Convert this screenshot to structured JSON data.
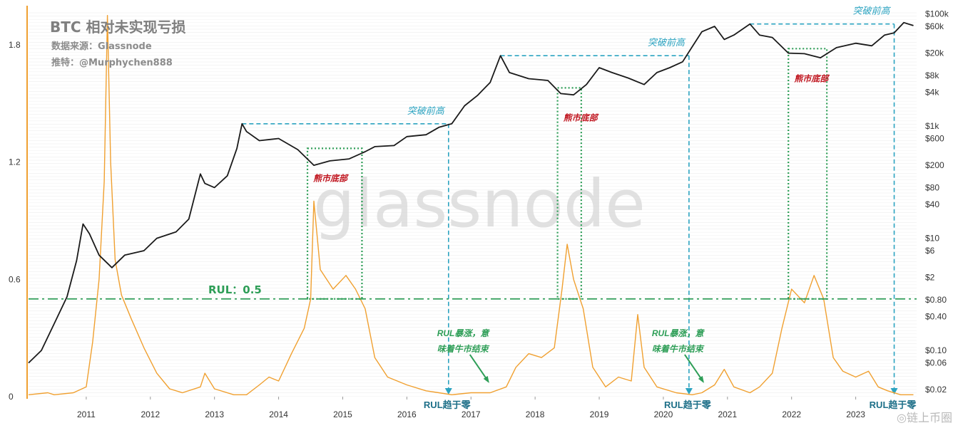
{
  "header": {
    "title": "BTC 相对未实现亏损",
    "source": "数据来源：Glassnode",
    "author": "推特：@Murphychen888"
  },
  "watermark": "glassnode",
  "footer_mark": "◎链上币圈",
  "colors": {
    "price": "#1a1a1a",
    "rul": "#f0a030",
    "threshold": "#2e9e57",
    "ath_guide": "#2ba3c0",
    "bottom_box": "#2e9e57",
    "bear_label": "#c0151f",
    "axis_text": "#333333"
  },
  "chart_data": {
    "type": "line",
    "x_ticks": [
      "2011",
      "2012",
      "2013",
      "2014",
      "2015",
      "2016",
      "2017",
      "2018",
      "2019",
      "2020",
      "2021",
      "2022",
      "2023"
    ],
    "y_left": {
      "ticks": [
        "0",
        "0.6",
        "1.2",
        "1.8"
      ],
      "range": [
        0,
        2.0
      ]
    },
    "y_right": {
      "scale": "log",
      "ticks": [
        "$0.02",
        "$0.06",
        "$0.10",
        "$0.40",
        "$0.80",
        "$2",
        "$6",
        "$10",
        "$40",
        "$80",
        "$200",
        "$600",
        "$1k",
        "$4k",
        "$8k",
        "$20k",
        "$60k",
        "$100k"
      ],
      "range": [
        0.015,
        140000
      ]
    },
    "series": [
      {
        "axis": "right",
        "points": [
          [
            2010.6,
            0.06
          ],
          [
            2010.8,
            0.1
          ],
          [
            2011.0,
            0.3
          ],
          [
            2011.2,
            0.9
          ],
          [
            2011.35,
            4
          ],
          [
            2011.45,
            18
          ],
          [
            2011.55,
            12
          ],
          [
            2011.7,
            5
          ],
          [
            2011.9,
            3
          ],
          [
            2012.1,
            5
          ],
          [
            2012.4,
            6
          ],
          [
            2012.6,
            10
          ],
          [
            2012.9,
            13
          ],
          [
            2013.1,
            22
          ],
          [
            2013.28,
            140
          ],
          [
            2013.35,
            95
          ],
          [
            2013.5,
            80
          ],
          [
            2013.7,
            130
          ],
          [
            2013.85,
            400
          ],
          [
            2013.93,
            1100
          ],
          [
            2014.0,
            800
          ],
          [
            2014.2,
            550
          ],
          [
            2014.5,
            600
          ],
          [
            2014.8,
            380
          ],
          [
            2015.05,
            200
          ],
          [
            2015.3,
            240
          ],
          [
            2015.6,
            260
          ],
          [
            2015.85,
            350
          ],
          [
            2016.0,
            430
          ],
          [
            2016.3,
            450
          ],
          [
            2016.5,
            650
          ],
          [
            2016.8,
            700
          ],
          [
            2017.0,
            950
          ],
          [
            2017.2,
            1100
          ],
          [
            2017.4,
            2300
          ],
          [
            2017.6,
            3500
          ],
          [
            2017.8,
            6000
          ],
          [
            2017.96,
            18000
          ],
          [
            2018.1,
            9000
          ],
          [
            2018.4,
            7000
          ],
          [
            2018.7,
            6500
          ],
          [
            2018.9,
            3800
          ],
          [
            2019.1,
            3600
          ],
          [
            2019.3,
            5500
          ],
          [
            2019.5,
            11000
          ],
          [
            2019.7,
            9000
          ],
          [
            2019.95,
            7200
          ],
          [
            2020.2,
            5500
          ],
          [
            2020.4,
            9000
          ],
          [
            2020.6,
            11000
          ],
          [
            2020.8,
            14000
          ],
          [
            2020.95,
            26000
          ],
          [
            2021.1,
            48000
          ],
          [
            2021.3,
            60000
          ],
          [
            2021.45,
            35000
          ],
          [
            2021.6,
            42000
          ],
          [
            2021.85,
            66000
          ],
          [
            2022.0,
            42000
          ],
          [
            2022.2,
            38000
          ],
          [
            2022.45,
            20000
          ],
          [
            2022.7,
            19500
          ],
          [
            2022.95,
            16500
          ],
          [
            2023.2,
            25000
          ],
          [
            2023.5,
            30000
          ],
          [
            2023.75,
            27000
          ],
          [
            2023.95,
            42000
          ],
          [
            2024.1,
            46000
          ],
          [
            2024.25,
            70000
          ],
          [
            2024.4,
            62000
          ]
        ]
      },
      {
        "axis": "left",
        "points": [
          [
            2010.6,
            0.01
          ],
          [
            2010.9,
            0.02
          ],
          [
            2011.0,
            0.01
          ],
          [
            2011.3,
            0.02
          ],
          [
            2011.5,
            0.05
          ],
          [
            2011.6,
            0.28
          ],
          [
            2011.7,
            0.6
          ],
          [
            2011.78,
            1.1
          ],
          [
            2011.83,
            1.95
          ],
          [
            2011.88,
            1.2
          ],
          [
            2011.95,
            0.7
          ],
          [
            2012.05,
            0.52
          ],
          [
            2012.2,
            0.4
          ],
          [
            2012.4,
            0.25
          ],
          [
            2012.6,
            0.12
          ],
          [
            2012.8,
            0.04
          ],
          [
            2013.0,
            0.02
          ],
          [
            2013.28,
            0.05
          ],
          [
            2013.35,
            0.12
          ],
          [
            2013.5,
            0.04
          ],
          [
            2013.8,
            0.01
          ],
          [
            2014.0,
            0.01
          ],
          [
            2014.2,
            0.06
          ],
          [
            2014.35,
            0.1
          ],
          [
            2014.5,
            0.08
          ],
          [
            2014.7,
            0.22
          ],
          [
            2014.9,
            0.35
          ],
          [
            2015.0,
            0.5
          ],
          [
            2015.05,
            1.0
          ],
          [
            2015.15,
            0.65
          ],
          [
            2015.35,
            0.55
          ],
          [
            2015.55,
            0.62
          ],
          [
            2015.7,
            0.55
          ],
          [
            2015.85,
            0.45
          ],
          [
            2016.0,
            0.2
          ],
          [
            2016.2,
            0.1
          ],
          [
            2016.5,
            0.06
          ],
          [
            2016.8,
            0.03
          ],
          [
            2017.0,
            0.02
          ],
          [
            2017.2,
            0.01
          ],
          [
            2017.5,
            0.02
          ],
          [
            2017.8,
            0.02
          ],
          [
            2018.05,
            0.05
          ],
          [
            2018.2,
            0.15
          ],
          [
            2018.4,
            0.22
          ],
          [
            2018.6,
            0.2
          ],
          [
            2018.8,
            0.25
          ],
          [
            2018.92,
            0.55
          ],
          [
            2019.0,
            0.78
          ],
          [
            2019.1,
            0.6
          ],
          [
            2019.25,
            0.45
          ],
          [
            2019.4,
            0.15
          ],
          [
            2019.6,
            0.05
          ],
          [
            2019.8,
            0.1
          ],
          [
            2020.0,
            0.08
          ],
          [
            2020.1,
            0.42
          ],
          [
            2020.2,
            0.15
          ],
          [
            2020.4,
            0.05
          ],
          [
            2020.7,
            0.02
          ],
          [
            2020.95,
            0.01
          ],
          [
            2021.1,
            0.02
          ],
          [
            2021.3,
            0.06
          ],
          [
            2021.45,
            0.14
          ],
          [
            2021.6,
            0.05
          ],
          [
            2021.85,
            0.02
          ],
          [
            2022.0,
            0.05
          ],
          [
            2022.2,
            0.12
          ],
          [
            2022.35,
            0.35
          ],
          [
            2022.5,
            0.55
          ],
          [
            2022.7,
            0.48
          ],
          [
            2022.85,
            0.62
          ],
          [
            2023.0,
            0.5
          ],
          [
            2023.15,
            0.2
          ],
          [
            2023.3,
            0.13
          ],
          [
            2023.5,
            0.1
          ],
          [
            2023.7,
            0.13
          ],
          [
            2023.85,
            0.05
          ],
          [
            2024.0,
            0.03
          ],
          [
            2024.2,
            0.01
          ],
          [
            2024.4,
            0.01
          ]
        ]
      }
    ],
    "threshold": {
      "value": 0.5,
      "label": "RUL：0.5"
    },
    "ath_breakouts": [
      {
        "from": 2013.93,
        "to": 2017.15,
        "price": 1100,
        "label": "突破前高"
      },
      {
        "from": 2017.96,
        "to": 2020.9,
        "price": 18000,
        "label": "突破前高"
      },
      {
        "from": 2021.85,
        "to": 2024.1,
        "price": 66000,
        "label": "突破前高"
      }
    ],
    "bear_bottoms": [
      {
        "from": 2014.95,
        "to": 2015.8,
        "top_price": 400,
        "label": "熊市底部"
      },
      {
        "from": 2018.85,
        "to": 2019.22,
        "top_price": 4800,
        "label": "熊市底部"
      },
      {
        "from": 2022.45,
        "to": 2023.05,
        "top_price": 24000,
        "label": "熊市底部"
      }
    ],
    "annotations": [
      {
        "x": 2017.15,
        "text": "RUL趋于零"
      },
      {
        "x": 2020.9,
        "text": "RUL趋于零"
      },
      {
        "x": 2024.1,
        "text": "RUL趋于零"
      },
      {
        "x": 2017.75,
        "y": 0.31,
        "lines": [
          "RUL暴涨，意",
          "味着牛市结束"
        ]
      },
      {
        "x": 2021.1,
        "y": 0.31,
        "lines": [
          "RUL暴涨，意",
          "味着牛市结束"
        ]
      }
    ]
  }
}
